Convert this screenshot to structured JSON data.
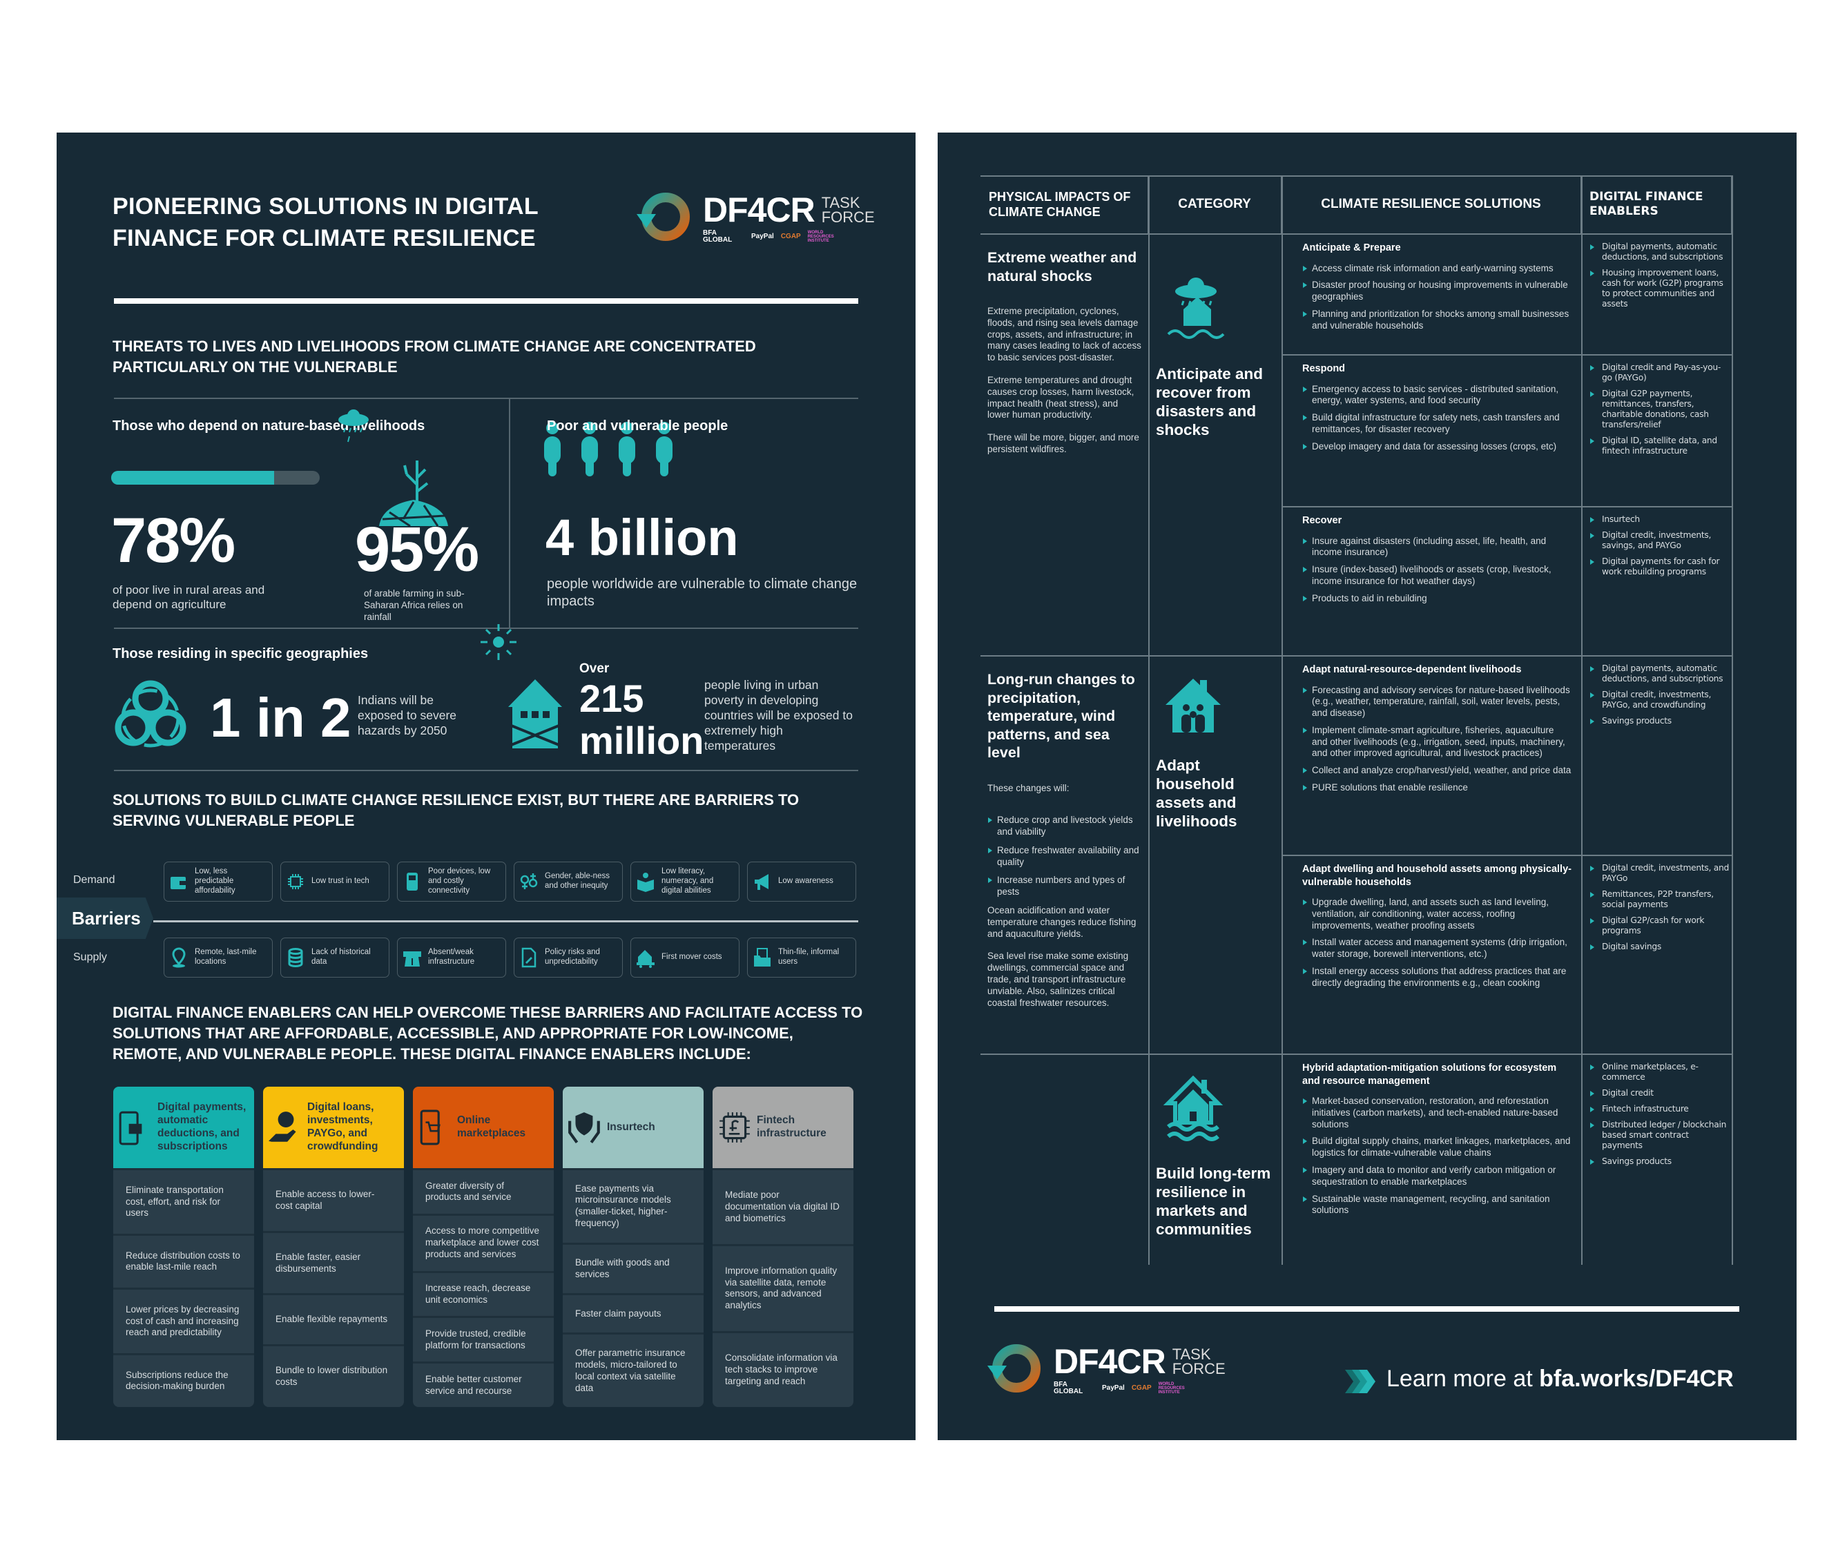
{
  "colors": {
    "panel": "#172a36",
    "teal": "#27b8b8",
    "yellow": "#f7be0b",
    "orange": "#d9560b",
    "light_teal": "#9ac3c1",
    "grey": "#a7a8a8",
    "cell": "#2a3d49"
  },
  "logo": {
    "name": "DF4CR",
    "tag1": "TASK",
    "tag2": "FORCE",
    "partners": [
      "BFA GLOBAL",
      "PayPal",
      "CGAP",
      "WORLD RESOURCES INSTITUTE"
    ]
  },
  "left": {
    "title_line1": "PIONEERING SOLUTIONS IN DIGITAL",
    "title_line2": "FINANCE FOR CLIMATE RESILIENCE",
    "threats_heading": "THREATS TO LIVES AND LIVELIHOODS FROM CLIMATE CHANGE ARE CONCENTRATED PARTICULARLY ON THE VULNERABLE",
    "nature": {
      "heading": "Those who depend on nature-based livelihoods",
      "progress_percent": 78,
      "stat1": "78%",
      "stat1_caption": "of poor live in rural areas and depend on agriculture",
      "stat2": "95%",
      "stat2_caption": "of arable farming in sub-Saharan Africa relies on rainfall"
    },
    "poor": {
      "heading": "Poor and vulnerable people",
      "stat": "4 billion",
      "caption": "people worldwide are vulnerable to climate change impacts"
    },
    "geo": {
      "heading": "Those residing in specific geographies",
      "stat1": "1 in 2",
      "stat1_caption": "Indians will be exposed to severe hazards by 2050",
      "stat2_pre": "Over",
      "stat2a": "215",
      "stat2b": "million",
      "stat2_caption": "people living in urban poverty in developing countries will be exposed to extremely high temperatures"
    },
    "solutions_heading": "SOLUTIONS TO BUILD CLIMATE CHANGE RESILIENCE EXIST, BUT THERE ARE BARRIERS TO SERVING VULNERABLE PEOPLE",
    "barriers": {
      "label": "Barriers",
      "demand_label": "Demand",
      "supply_label": "Supply",
      "demand": [
        {
          "icon": "wallet-icon",
          "text": "Low, less predictable affordability"
        },
        {
          "icon": "chip-icon",
          "text": "Low trust in tech"
        },
        {
          "icon": "phone-icon",
          "text": "Poor devices, low and costly connectivity"
        },
        {
          "icon": "gender-icon",
          "text": "Gender, able-ness and other inequity"
        },
        {
          "icon": "reader-icon",
          "text": "Low literacy, numeracy, and digital abilities"
        },
        {
          "icon": "megaphone-icon",
          "text": "Low awareness"
        }
      ],
      "supply": [
        {
          "icon": "location-pin-icon",
          "text": "Remote, last-mile locations"
        },
        {
          "icon": "database-icon",
          "text": "Lack of historical data"
        },
        {
          "icon": "road-icon",
          "text": "Absent/weak infrastructure"
        },
        {
          "icon": "policy-document-icon",
          "text": "Policy risks and unpredictability"
        },
        {
          "icon": "moving-house-icon",
          "text": "First mover costs"
        },
        {
          "icon": "folder-icon",
          "text": "Thin-file, informal users"
        }
      ]
    },
    "enablers_heading": "DIGITAL FINANCE ENABLERS CAN HELP OVERCOME THESE BARRIERS AND FACILITATE ACCESS TO SOLUTIONS THAT ARE AFFORDABLE, ACCESSIBLE, AND APPROPRIATE FOR LOW-INCOME, REMOTE, AND VULNERABLE PEOPLE. THESE DIGITAL FINANCE ENABLERS INCLUDE:",
    "enablers": [
      {
        "title": "Digital payments, automatic deductions, and subscriptions",
        "color": "#14b0ad",
        "icon": "mobile-card-icon",
        "items": [
          "Eliminate transportation cost, effort, and risk for users",
          "Reduce distribution costs to enable last-mile reach",
          "Lower prices by decreasing cost of cash and increasing reach and predictability",
          "Subscriptions reduce the decision-making burden"
        ]
      },
      {
        "title": "Digital loans, investments, PAYGo, and crowdfunding",
        "color": "#f7be0b",
        "icon": "hand-coin-icon",
        "items": [
          "Enable access to lower-cost capital",
          "Enable faster, easier disbursements",
          "Enable flexible repayments",
          "Bundle to lower distribution costs"
        ]
      },
      {
        "title": "Online marketplaces",
        "color": "#d9560b",
        "icon": "mobile-cart-icon",
        "items": [
          "Greater diversity of products and service",
          "Access to more competitive marketplace and lower cost products and services",
          "Increase reach, decrease unit economics",
          "Provide trusted, credible platform for transactions",
          "Enable better customer service and recourse"
        ]
      },
      {
        "title": "Insurtech",
        "color": "#9ac3c1",
        "icon": "shield-hands-icon",
        "items": [
          "Ease payments via microinsurance models (smaller-ticket, higher-frequency)",
          "Bundle with goods and services",
          "Faster claim payouts",
          "Offer parametric insurance models, micro-tailored to local context via satellite data"
        ]
      },
      {
        "title": "Fintech infrastructure",
        "color": "#a7a8a8",
        "icon": "pound-chip-icon",
        "items": [
          "Mediate poor documentation via digital ID and biometrics",
          "Improve information quality via satellite data, remote sensors, and advanced analytics",
          "Consolidate information via tech stacks to improve targeting and reach"
        ]
      }
    ]
  },
  "right": {
    "headers": [
      "PHYSICAL IMPACTS OF CLIMATE CHANGE",
      "CATEGORY",
      "CLIMATE RESILIENCE SOLUTIONS",
      "DIGITAL FINANCE ENABLERS"
    ],
    "rows": [
      {
        "impact_title": "Extreme weather and natural shocks",
        "impact_paragraphs": [
          "Extreme precipitation, cyclones, floods, and rising sea levels damage crops, assets, and infrastructure; in many cases leading to lack of access to basic services post-disaster.",
          "Extreme temperatures and drought causes crop losses, harm livestock, impact health (heat stress), and lower human productivity.",
          "There will be more, bigger, and more persistent wildfires."
        ],
        "impact_bullets": [],
        "category": "Anticipate and recover from disasters and shocks",
        "category_icon": "storm-house-icon",
        "groups": [
          {
            "title": "Anticipate & Prepare",
            "solutions": [
              "Access climate risk information and early-warning systems",
              "Disaster proof housing or housing improvements in vulnerable geographies",
              "Planning and prioritization for shocks among small businesses and vulnerable households"
            ],
            "enablers": [
              "Digital payments, automatic deductions, and subscriptions",
              "Housing improvement loans, cash for work (G2P) programs to protect communities and assets"
            ]
          },
          {
            "title": "Respond",
            "solutions": [
              "Emergency access to basic services - distributed sanitation, energy, water systems, and food security",
              "Build digital infrastructure for safety nets, cash transfers and remittances, for disaster recovery",
              "Develop imagery and data for assessing losses (crops, etc)"
            ],
            "enablers": [
              "Digital credit and Pay-as-you-go (PAYGo)",
              "Digital G2P payments, remittances, transfers, charitable donations, cash transfers/relief",
              "Digital ID, satellite data, and fintech infrastructure"
            ]
          },
          {
            "title": "Recover",
            "solutions": [
              "Insure against disasters (including asset, life, health, and income insurance)",
              "Insure (index-based) livelihoods or assets (crop, livestock, income insurance for hot weather days)",
              "Products to aid in rebuilding"
            ],
            "enablers": [
              "Insurtech",
              "Digital credit, investments, savings, and PAYGo",
              "Digital payments for cash for work rebuilding programs"
            ]
          }
        ]
      },
      {
        "impact_title": "Long-run changes to precipitation, temperature, wind patterns, and sea level",
        "impact_intro": "These changes will:",
        "impact_bullets": [
          "Reduce crop and livestock yields and viability",
          "Reduce freshwater availability and quality",
          "Increase numbers and types of pests"
        ],
        "impact_paragraphs": [
          "Ocean acidification and water temperature changes reduce fishing and aquaculture yields.",
          "Sea level rise make some existing dwellings, commercial space and trade, and transport infrastructure unviable. Also, salinizes critical coastal freshwater resources."
        ],
        "category": "Adapt household assets and livelihoods",
        "category_icon": "family-house-icon",
        "groups": [
          {
            "title": "Adapt natural-resource-dependent livelihoods",
            "solutions": [
              "Forecasting and advisory services for nature-based livelihoods (e.g., weather, temperature, rainfall, soil, water levels, pests, and disease)",
              "Implement climate-smart agriculture, fisheries, aquaculture and other livelihoods (e.g., irrigation, seed, inputs, machinery, and other improved agricultural, and livestock practices)",
              "Collect and analyze crop/harvest/yield, weather, and price data",
              "PURE solutions that enable resilience"
            ],
            "enablers": [
              "Digital payments, automatic deductions, and subscriptions",
              "Digital credit, investments, PAYGo, and crowdfunding",
              "Savings products"
            ]
          },
          {
            "title": "Adapt dwelling and household assets among physically-vulnerable households",
            "solutions": [
              "Upgrade dwelling, land, and assets such as land leveling, ventilation, air conditioning, water access, roofing improvements, weather proofing assets",
              "Install water access and management systems (drip irrigation, water storage, borewell interventions, etc.)",
              "Install energy access solutions that address practices that are directly  degrading the environments e.g., clean cooking"
            ],
            "enablers": [
              "Digital credit, investments, and PAYGo",
              "Remittances, P2P transfers, social payments",
              "Digital G2P/cash for work programs",
              "Digital savings"
            ]
          }
        ]
      },
      {
        "category": "Build long-term resilience in markets and communities",
        "category_icon": "flooded-house-icon",
        "groups": [
          {
            "title": "Hybrid adaptation-mitigation solutions for ecosystem and resource management",
            "solutions": [
              "Market-based conservation, restoration, and reforestation initiatives (carbon markets), and tech-enabled nature-based solutions",
              "Build digital supply chains, market linkages, marketplaces, and logistics for climate-vulnerable value chains",
              "Imagery and data to monitor and verify carbon mitigation or sequestration to enable marketplaces",
              "Sustainable waste management, recycling, and sanitation solutions"
            ],
            "enablers": [
              "Online marketplaces, e-commerce",
              "Digital credit",
              "Fintech infrastructure",
              "Distributed ledger / blockchain based smart contract payments",
              "Savings products"
            ]
          }
        ]
      }
    ],
    "footer": {
      "learn_prefix": "Learn more at ",
      "learn_link": "bfa.works/DF4CR"
    }
  }
}
